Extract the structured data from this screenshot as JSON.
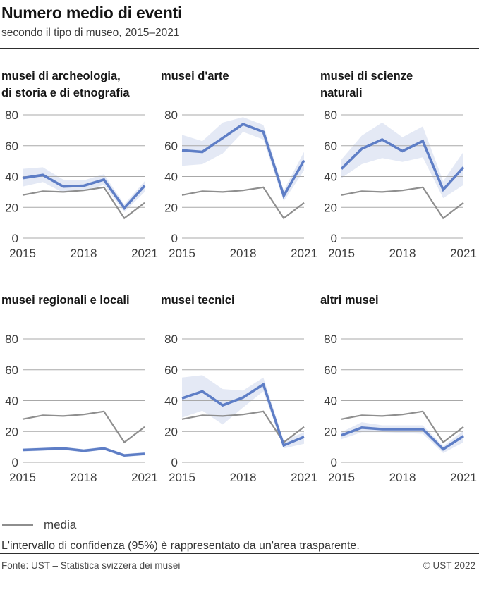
{
  "header": {
    "title": "Numero medio di eventi",
    "subtitle": "secondo il tipo di museo, 2015–2021"
  },
  "legend": {
    "media_label": "media",
    "note": "L'intervallo di confidenza (95%) è rappresentato da un'area trasparente."
  },
  "footer": {
    "source": "Fonte: UST – Statistica svizzera dei musei",
    "copyright": "© UST 2022"
  },
  "colors": {
    "value_line": "#5e7ec6",
    "band_fill": "#5e7ec6",
    "band_opacity": 0.17,
    "media_line": "#8e8e8e",
    "grid_line": "#a8a8a8",
    "tick_text": "#3b3b3b"
  },
  "chart_data": {
    "type": "line",
    "x": [
      2015,
      2016,
      2017,
      2018,
      2019,
      2020,
      2021
    ],
    "x_tick_labels": [
      "2015",
      "2018",
      "2021"
    ],
    "y_ticks": [
      0,
      20,
      40,
      60,
      80
    ],
    "ylim": [
      0,
      80
    ],
    "media_series_name": "media",
    "media": [
      28,
      30.5,
      30,
      31,
      33,
      13,
      23
    ],
    "panels": [
      {
        "key": "archeologia-storia-etnografia",
        "title_lines": [
          "musei di archeologia,",
          "di storia e di etnografia"
        ],
        "values": [
          39,
          41,
          33.5,
          34,
          38,
          19.5,
          34
        ],
        "ci_lower": [
          33.5,
          36.5,
          29.5,
          31,
          34.5,
          17,
          30
        ],
        "ci_upper": [
          45,
          46,
          38,
          37.5,
          41.5,
          22,
          37
        ]
      },
      {
        "key": "arte",
        "title_lines": [
          "musei d'arte"
        ],
        "values": [
          57,
          56,
          65,
          74,
          69,
          27.5,
          50.5
        ],
        "ci_lower": [
          47,
          48,
          55,
          69,
          64,
          24,
          44
        ],
        "ci_upper": [
          67,
          63,
          75,
          78.5,
          73.5,
          31,
          56
        ]
      },
      {
        "key": "scienze-naturali",
        "title_lines": [
          "musei di scienze",
          "naturali"
        ],
        "values": [
          45,
          58,
          64,
          56.5,
          63,
          31.5,
          46
        ],
        "ci_lower": [
          39,
          48,
          52,
          49.5,
          52.5,
          26,
          34.5
        ],
        "ci_upper": [
          51,
          66.5,
          75,
          65.5,
          72.5,
          37,
          56
        ]
      },
      {
        "key": "regionali-locali",
        "title_lines": [
          "musei regionali e locali"
        ],
        "values": [
          8,
          8.5,
          9,
          7.5,
          9,
          4.5,
          5.5
        ],
        "ci_lower": [
          7,
          7.5,
          8,
          6.5,
          8,
          3.5,
          4.5
        ],
        "ci_upper": [
          9,
          9.5,
          10,
          8.5,
          10,
          5.5,
          6.5
        ]
      },
      {
        "key": "tecnici",
        "title_lines": [
          "musei tecnici"
        ],
        "values": [
          41.5,
          46,
          37,
          42,
          50.5,
          11,
          16.5
        ],
        "ci_lower": [
          29,
          33.5,
          24.5,
          35.5,
          46,
          9,
          12
        ],
        "ci_upper": [
          55,
          56.5,
          47.5,
          46.5,
          55,
          14,
          19.5
        ]
      },
      {
        "key": "altri",
        "title_lines": [
          "altri musei"
        ],
        "values": [
          17.5,
          22.5,
          21.5,
          21.5,
          21.5,
          8.5,
          17
        ],
        "ci_lower": [
          15,
          19.5,
          19.5,
          19,
          18.5,
          6,
          13
        ],
        "ci_upper": [
          19.5,
          26,
          24,
          24,
          24,
          10.5,
          20.5
        ]
      }
    ]
  }
}
